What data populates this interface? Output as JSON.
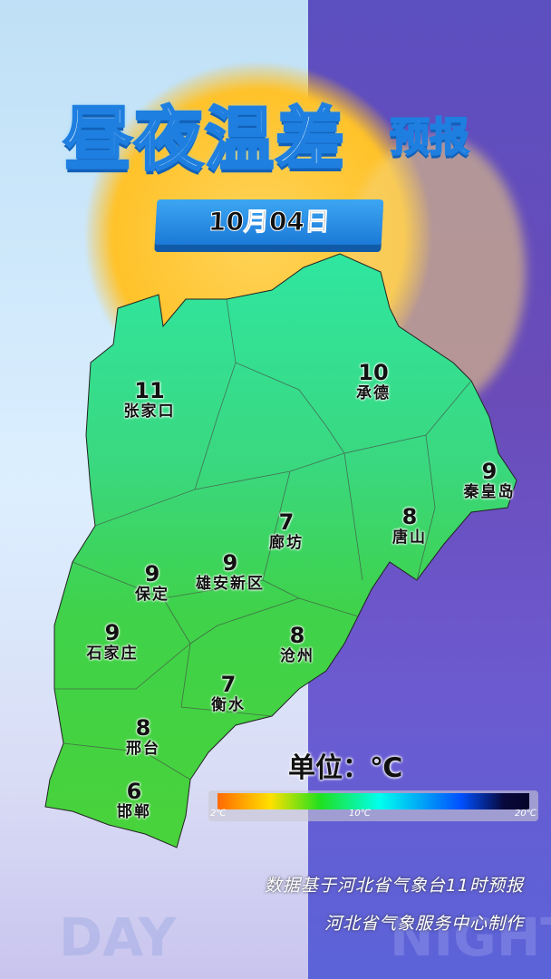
{
  "header": {
    "title": "昼夜温差",
    "title_suffix": "预报",
    "date": "10月04日"
  },
  "background": {
    "left_label": "DAY",
    "right_label": "NIGHT"
  },
  "map": {
    "region": "河北省",
    "cities": [
      {
        "name": "张家口",
        "value": 11
      },
      {
        "name": "承德",
        "value": 10
      },
      {
        "name": "秦皇岛",
        "value": 9
      },
      {
        "name": "唐山",
        "value": 8
      },
      {
        "name": "廊坊",
        "value": 7
      },
      {
        "name": "雄安新区",
        "value": 9
      },
      {
        "name": "保定",
        "value": 9
      },
      {
        "name": "石家庄",
        "value": 9
      },
      {
        "name": "沧州",
        "value": 8
      },
      {
        "name": "衡水",
        "value": 7
      },
      {
        "name": "邢台",
        "value": 8
      },
      {
        "name": "邯郸",
        "value": 6
      }
    ]
  },
  "legend": {
    "unit_label": "单位：℃",
    "min_label": "2℃",
    "mid_label": "10℃",
    "max_label": "20℃",
    "range": [
      2,
      20
    ],
    "colors": [
      "#ff6a00",
      "#ffe000",
      "#1fe01f",
      "#00ffee",
      "#0050ff",
      "#05052a"
    ]
  },
  "footer": {
    "line1": "数据基于河北省气象台11时预报",
    "line2": "河北省气象服务中心制作"
  }
}
